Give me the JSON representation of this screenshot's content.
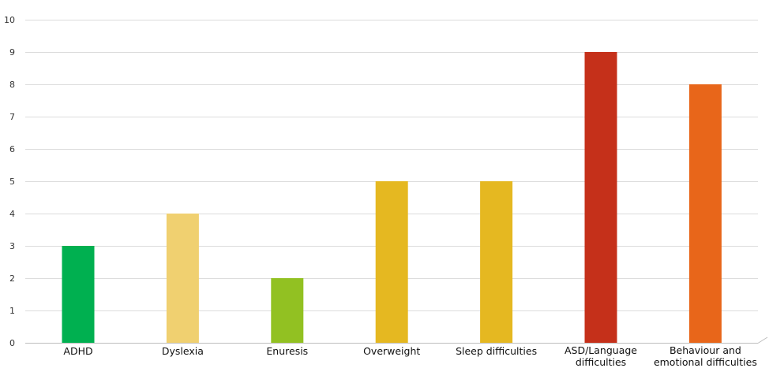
{
  "chart_data": {
    "type": "bar",
    "categories": [
      [
        "ADHD"
      ],
      [
        "Dyslexia"
      ],
      [
        "Enuresis"
      ],
      [
        "Overweight"
      ],
      [
        "Sleep difficulties"
      ],
      [
        "ASD/Language",
        "difficulties"
      ],
      [
        "Behaviour and",
        "emotional difficulties"
      ]
    ],
    "values": [
      3,
      4,
      2,
      5,
      5,
      9,
      8
    ],
    "colors": [
      "#00b050",
      "#f0d070",
      "#92c122",
      "#e5b821",
      "#e5b821",
      "#c5301a",
      "#e8661a"
    ],
    "title": "",
    "xlabel": "",
    "ylabel": "",
    "ylim": [
      0,
      10
    ],
    "yticks": [
      0,
      1,
      2,
      3,
      4,
      5,
      6,
      7,
      8,
      9,
      10
    ],
    "grid": true
  }
}
